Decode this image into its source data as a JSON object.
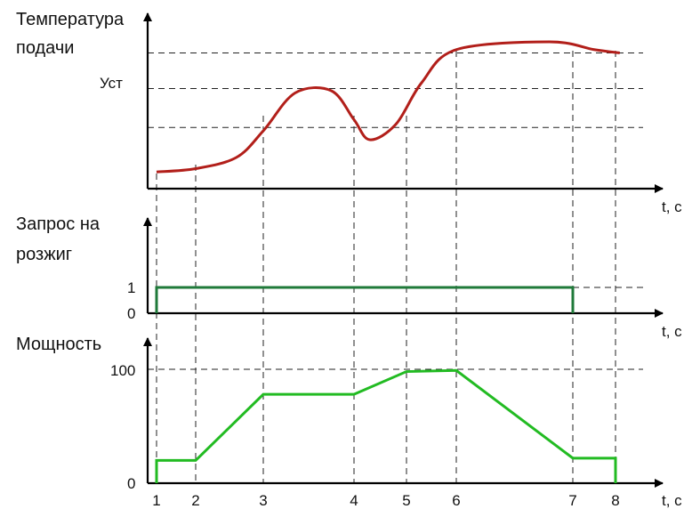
{
  "chart_data": [
    {
      "type": "line",
      "ylabel_lines": [
        "Температура",
        "подачи"
      ],
      "xlabel": "t, с",
      "y_marker": "Уст",
      "series": [
        {
          "points": [
            [
              1,
              0.15
            ],
            [
              2,
              0.18
            ],
            [
              2.6,
              0.28
            ],
            [
              3,
              0.52
            ],
            [
              3.35,
              0.86
            ],
            [
              3.75,
              0.88
            ],
            [
              4,
              0.62
            ],
            [
              4.3,
              0.44
            ],
            [
              4.8,
              0.58
            ],
            [
              5.3,
              0.95
            ],
            [
              6,
              1.25
            ],
            [
              6.8,
              1.32
            ],
            [
              7.5,
              1.25
            ],
            [
              8.1,
              1.22
            ]
          ],
          "color": "#b21f1a"
        }
      ],
      "reference_lines": [
        1.22,
        0.9,
        0.55
      ],
      "grid": false
    },
    {
      "type": "line",
      "ylabel_lines": [
        "Запрос на",
        "розжиг"
      ],
      "xlabel": "t, с",
      "yticks": [
        "1",
        "0"
      ],
      "series": [
        {
          "points": [
            [
              1,
              0
            ],
            [
              1,
              1
            ],
            [
              7,
              1
            ],
            [
              7,
              0
            ]
          ],
          "color": "#1f7a3a"
        }
      ],
      "ylim": [
        0,
        1
      ],
      "grid": false
    },
    {
      "type": "line",
      "ylabel": "Мощность",
      "xlabel": "t, с",
      "yticks": [
        "100",
        "0"
      ],
      "xticks": [
        "1",
        "2",
        "3",
        "4",
        "5",
        "6",
        "7",
        "8"
      ],
      "series": [
        {
          "points": [
            [
              1,
              0
            ],
            [
              1,
              20
            ],
            [
              2,
              20
            ],
            [
              3,
              78
            ],
            [
              4,
              78
            ],
            [
              5,
              98
            ],
            [
              6,
              99
            ],
            [
              7,
              22
            ],
            [
              8,
              22
            ],
            [
              8,
              0
            ]
          ],
          "color": "#22bb22"
        }
      ],
      "ylim": [
        0,
        100
      ],
      "grid": false
    }
  ]
}
